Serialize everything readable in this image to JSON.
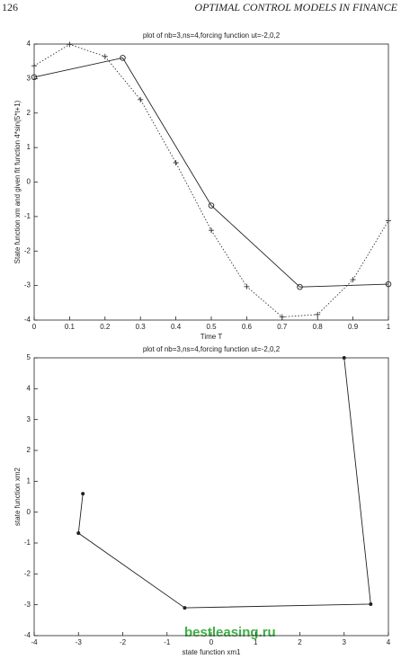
{
  "header": {
    "page_number": "126",
    "running_title": "OPTIMAL CONTROL MODELS IN FINANCE"
  },
  "watermark": "bestleasing.ru",
  "chart_data": [
    {
      "type": "line",
      "title": "plot of nb=3,ns=4,forcing function ut=-2,0,2",
      "xlabel": "Time T",
      "ylabel": "State function xm and given fit function 4*sin(5*t+1)",
      "xlim": [
        0,
        1
      ],
      "ylim": [
        -4,
        4
      ],
      "xticks": [
        0,
        0.1,
        0.2,
        0.3,
        0.4,
        0.5,
        0.6,
        0.7,
        0.8,
        0.9,
        1
      ],
      "yticks": [
        -4,
        -3,
        -2,
        -1,
        0,
        1,
        2,
        3,
        4
      ],
      "series": [
        {
          "color": "#222222",
          "linestyle": "solid",
          "marker": "o",
          "x": [
            0,
            0.25,
            0.5,
            0.75,
            1
          ],
          "values": [
            3.04,
            3.6,
            -0.68,
            -3.04,
            -2.96
          ]
        },
        {
          "color": "#333333",
          "linestyle": "dotted",
          "marker": "+",
          "x": [
            0,
            0.1,
            0.2,
            0.3,
            0.4,
            0.5,
            0.6,
            0.7,
            0.8,
            0.9,
            1
          ],
          "values": [
            3.37,
            3.99,
            3.64,
            2.39,
            0.56,
            -1.4,
            -3.03,
            -3.91,
            -3.84,
            -2.83,
            -1.12
          ]
        }
      ]
    },
    {
      "type": "line",
      "title": "plot of nb=3,ns=4,forcing function ut=-2,0,2",
      "xlabel": "state function xm1",
      "ylabel": "state function xm2",
      "xlim": [
        -4,
        4
      ],
      "ylim": [
        -4,
        5
      ],
      "xticks": [
        -4,
        -3,
        -2,
        -1,
        0,
        1,
        2,
        3,
        4
      ],
      "yticks": [
        -4,
        -3,
        -2,
        -1,
        0,
        1,
        2,
        3,
        4,
        5
      ],
      "series": [
        {
          "color": "#222222",
          "linestyle": "solid",
          "marker": "*",
          "x": [
            -2.9,
            -3,
            -0.6,
            3.6,
            3
          ],
          "values": [
            0.6,
            -0.68,
            -3.1,
            -2.98,
            5
          ]
        }
      ]
    }
  ]
}
